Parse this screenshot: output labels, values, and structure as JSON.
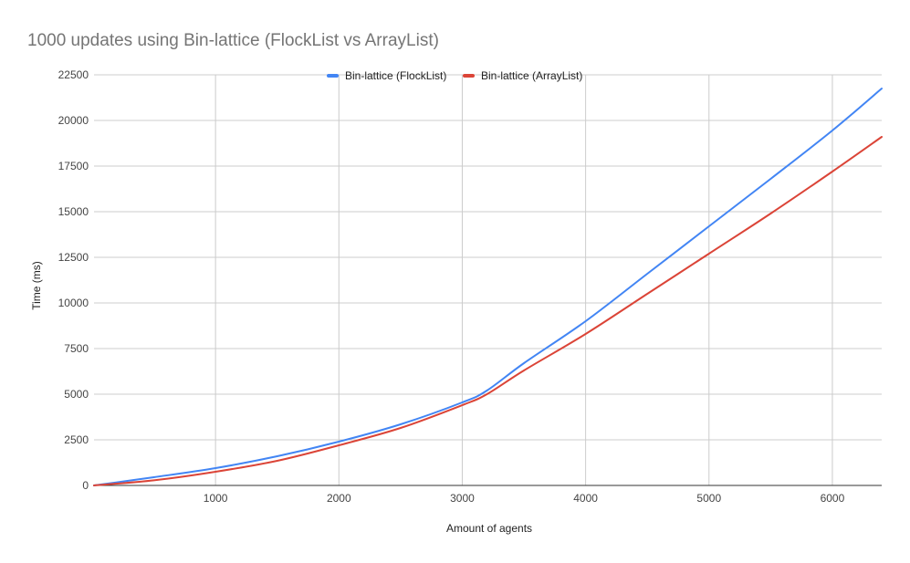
{
  "chart_data": {
    "type": "line",
    "title": "1000 updates using Bin-lattice (FlockList vs ArrayList)",
    "xlabel": "Amount of agents",
    "ylabel": "Time (ms)",
    "xlim": [
      15,
      6400
    ],
    "ylim": [
      0,
      22500
    ],
    "x_ticks": [
      1000,
      2000,
      3000,
      4000,
      5000,
      6000
    ],
    "y_ticks": [
      0,
      2500,
      5000,
      7500,
      10000,
      12500,
      15000,
      17500,
      20000,
      22500
    ],
    "grid": true,
    "legend_position": "top-center",
    "series": [
      {
        "name": "Bin-lattice (FlockList)",
        "color": "#4285f4",
        "x": [
          15,
          500,
          1000,
          1500,
          2000,
          2500,
          3000,
          3200,
          3500,
          4000,
          4500,
          5000,
          5500,
          6000,
          6400
        ],
        "y": [
          0,
          450,
          950,
          1600,
          2400,
          3350,
          4550,
          5200,
          6700,
          9000,
          11600,
          14200,
          16800,
          19450,
          21750
        ]
      },
      {
        "name": "Bin-lattice (ArrayList)",
        "color": "#db4437",
        "x": [
          15,
          500,
          1000,
          1500,
          2000,
          2500,
          3000,
          3200,
          3500,
          4000,
          4500,
          5000,
          5500,
          6000,
          6400
        ],
        "y": [
          0,
          280,
          750,
          1350,
          2200,
          3150,
          4400,
          5000,
          6300,
          8300,
          10500,
          12700,
          14900,
          17200,
          19100
        ]
      }
    ]
  }
}
